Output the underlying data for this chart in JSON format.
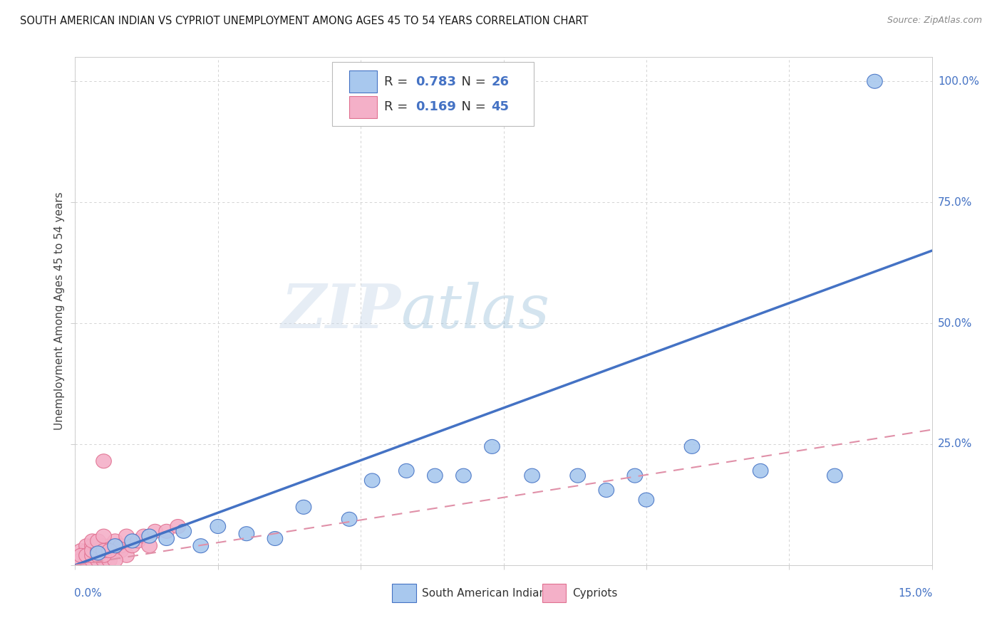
{
  "title": "SOUTH AMERICAN INDIAN VS CYPRIOT UNEMPLOYMENT AMONG AGES 45 TO 54 YEARS CORRELATION CHART",
  "source": "Source: ZipAtlas.com",
  "ylabel": "Unemployment Among Ages 45 to 54 years",
  "xlim": [
    0.0,
    0.15
  ],
  "ylim": [
    0.0,
    1.05
  ],
  "ytick_values": [
    0.0,
    0.25,
    0.5,
    0.75,
    1.0
  ],
  "ytick_labels": [
    "",
    "25.0%",
    "50.0%",
    "75.0%",
    "100.0%"
  ],
  "xtick_values": [
    0.0,
    0.025,
    0.05,
    0.075,
    0.1,
    0.125,
    0.15
  ],
  "blue_R": "0.783",
  "blue_N": "26",
  "pink_R": "0.169",
  "pink_N": "45",
  "blue_fill": "#a8c8ee",
  "blue_edge": "#4472c4",
  "pink_fill": "#f4b0c8",
  "pink_edge": "#e07090",
  "blue_line_color": "#4472c4",
  "pink_line_color": "#e090a8",
  "grid_color": "#cccccc",
  "bg_color": "#ffffff",
  "blue_x": [
    0.004,
    0.007,
    0.01,
    0.013,
    0.016,
    0.019,
    0.022,
    0.025,
    0.03,
    0.035,
    0.04,
    0.048,
    0.052,
    0.058,
    0.063,
    0.068,
    0.073,
    0.08,
    0.088,
    0.093,
    0.098,
    0.1,
    0.108,
    0.12,
    0.133,
    0.14
  ],
  "blue_y": [
    0.025,
    0.04,
    0.05,
    0.06,
    0.055,
    0.07,
    0.04,
    0.08,
    0.065,
    0.055,
    0.12,
    0.095,
    0.175,
    0.195,
    0.185,
    0.185,
    0.245,
    0.185,
    0.185,
    0.155,
    0.185,
    0.135,
    0.245,
    0.195,
    0.185,
    1.0
  ],
  "pink_x": [
    0.001,
    0.002,
    0.002,
    0.003,
    0.003,
    0.004,
    0.004,
    0.005,
    0.005,
    0.006,
    0.006,
    0.007,
    0.007,
    0.008,
    0.008,
    0.009,
    0.009,
    0.01,
    0.011,
    0.012,
    0.013,
    0.014,
    0.016,
    0.018,
    0.001,
    0.002,
    0.003,
    0.004,
    0.005,
    0.006,
    0.007,
    0.001,
    0.002,
    0.003,
    0.004,
    0.003,
    0.004,
    0.005,
    0.004,
    0.005,
    0.003,
    0.004,
    0.005,
    0.006,
    0.005
  ],
  "pink_y": [
    0.03,
    0.03,
    0.04,
    0.04,
    0.02,
    0.03,
    0.02,
    0.03,
    0.215,
    0.02,
    0.04,
    0.03,
    0.05,
    0.03,
    0.04,
    0.02,
    0.06,
    0.04,
    0.05,
    0.06,
    0.04,
    0.07,
    0.07,
    0.08,
    0.01,
    0.01,
    0.01,
    0.01,
    0.01,
    0.01,
    0.01,
    0.02,
    0.02,
    0.02,
    0.02,
    0.03,
    0.03,
    0.02,
    0.04,
    0.04,
    0.05,
    0.05,
    0.03,
    0.03,
    0.06
  ],
  "blue_line_x": [
    0.0,
    0.15
  ],
  "blue_line_y": [
    0.0,
    0.65
  ],
  "pink_line_x": [
    0.0,
    0.15
  ],
  "pink_line_y": [
    0.0,
    0.28
  ],
  "watermark_zip": "ZIP",
  "watermark_atlas": "atlas",
  "legend_text_color": "#4472c4"
}
